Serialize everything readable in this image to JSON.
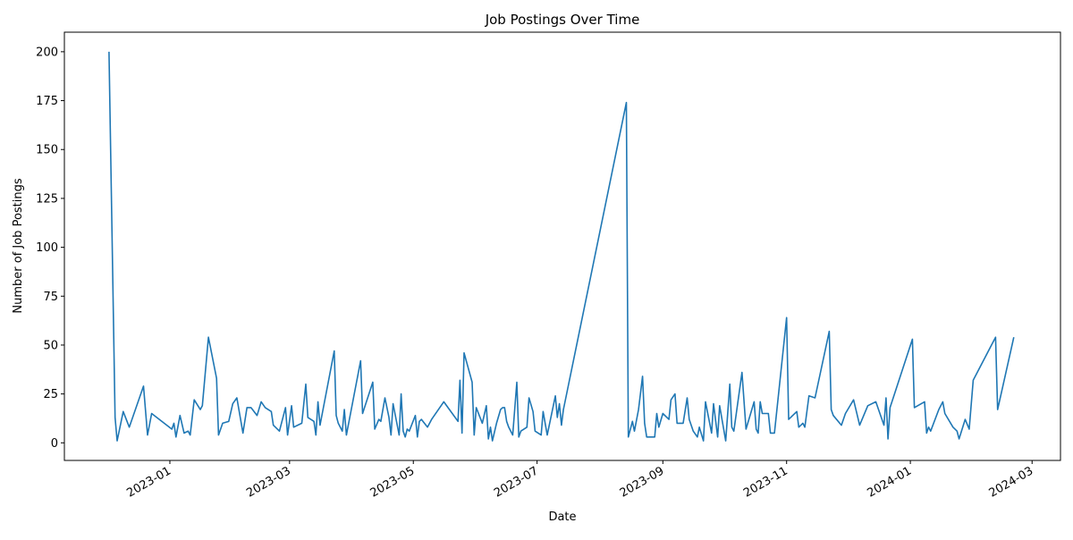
{
  "chart_data": {
    "type": "line",
    "title": "Job Postings Over Time",
    "xlabel": "Date",
    "ylabel": "Number of Job Postings",
    "x": [
      19328,
      19331,
      19332,
      19335,
      19338,
      19345,
      19347,
      19349,
      19359,
      19360,
      19361,
      19363,
      19365,
      19367,
      19368,
      19370,
      19373,
      19374,
      19377,
      19381,
      19382,
      19384,
      19387,
      19389,
      19391,
      19394,
      19396,
      19398,
      19401,
      19403,
      19405,
      19408,
      19409,
      19412,
      19415,
      19416,
      19418,
      19419,
      19421,
      19423,
      19425,
      19426,
      19429,
      19430,
      19431,
      19432,
      19439,
      19440,
      19441,
      19443,
      19444,
      19445,
      19452,
      19453,
      19458,
      19459,
      19461,
      19462,
      19464,
      19466,
      19467,
      19468,
      19471,
      19472,
      19473,
      19474,
      19475,
      19476,
      19479,
      19480,
      19481,
      19482,
      19485,
      19487,
      19493,
      19500,
      19501,
      19502,
      19503,
      19507,
      19508,
      19509,
      19512,
      19514,
      19515,
      19516,
      19517,
      19519,
      19521,
      19522,
      19523,
      19524,
      19525,
      19527,
      19529,
      19530,
      19531,
      19534,
      19535,
      19537,
      19538,
      19541,
      19542,
      19544,
      19548,
      19549,
      19550,
      19551,
      19552,
      19583,
      19584,
      19586,
      19587,
      19589,
      19591,
      19592,
      19593,
      19597,
      19598,
      19599,
      19601,
      19604,
      19605,
      19607,
      19608,
      19611,
      19613,
      19614,
      19616,
      19618,
      19619,
      19621,
      19622,
      19625,
      19626,
      19628,
      19629,
      19632,
      19634,
      19635,
      19636,
      19640,
      19642,
      19646,
      19647,
      19648,
      19649,
      19650,
      19653,
      19654,
      19656,
      19662,
      19663,
      19667,
      19668,
      19670,
      19671,
      19673,
      19676,
      19683,
      19684,
      19685,
      19689,
      19691,
      19695,
      19698,
      19702,
      19706,
      19710,
      19711,
      19712,
      19713,
      19724,
      19725,
      19730,
      19731,
      19732,
      19733,
      19737,
      19739,
      19740,
      19744,
      19746,
      19747,
      19750,
      19752,
      19754,
      19765,
      19766,
      19774
    ],
    "series": [
      {
        "name": "Job Postings",
        "color": "#1f77b4",
        "values": [
          200,
          13,
          1,
          16,
          8,
          29,
          4,
          15,
          7,
          10,
          3,
          14,
          5,
          6,
          4,
          22,
          17,
          19,
          54,
          33,
          4,
          10,
          11,
          20,
          23,
          5,
          18,
          18,
          14,
          21,
          18,
          16,
          9,
          6,
          18,
          4,
          19,
          8,
          9,
          10,
          30,
          13,
          11,
          4,
          21,
          9,
          47,
          14,
          10,
          6,
          17,
          4,
          42,
          15,
          31,
          7,
          12,
          11,
          23,
          13,
          4,
          20,
          4,
          25,
          6,
          3,
          7,
          6,
          14,
          3,
          11,
          12,
          8,
          12,
          21,
          11,
          32,
          5,
          46,
          31,
          4,
          18,
          10,
          19,
          2,
          8,
          1,
          10,
          17,
          18,
          18,
          11,
          8,
          4,
          31,
          3,
          6,
          8,
          23,
          16,
          6,
          4,
          16,
          4,
          24,
          13,
          20,
          9,
          17,
          174,
          3,
          11,
          6,
          17,
          34,
          10,
          3,
          3,
          15,
          8,
          15,
          12,
          22,
          25,
          10,
          10,
          23,
          12,
          6,
          3,
          8,
          1,
          21,
          5,
          20,
          3,
          19,
          1,
          30,
          8,
          6,
          36,
          7,
          21,
          7,
          5,
          21,
          15,
          15,
          5,
          5,
          64,
          12,
          16,
          8,
          10,
          8,
          24,
          23,
          57,
          17,
          14,
          9,
          15,
          22,
          9,
          19,
          21,
          9,
          23,
          2,
          18,
          53,
          18,
          21,
          5,
          8,
          6,
          17,
          21,
          15,
          8,
          6,
          2,
          12,
          7,
          32,
          54,
          17,
          54
        ]
      }
    ],
    "xlim": [
      19306,
      19797
    ],
    "xticks": [
      {
        "value": 19358,
        "label": "2023-01"
      },
      {
        "value": 19417,
        "label": "2023-03"
      },
      {
        "value": 19478,
        "label": "2023-05"
      },
      {
        "value": 19539,
        "label": "2023-07"
      },
      {
        "value": 19601,
        "label": "2023-09"
      },
      {
        "value": 19662,
        "label": "2023-11"
      },
      {
        "value": 19723,
        "label": "2024-01"
      },
      {
        "value": 19783,
        "label": "2024-03"
      }
    ],
    "ylim": [
      -9,
      210
    ],
    "yticks": [
      0,
      25,
      50,
      75,
      100,
      125,
      150,
      175,
      200
    ],
    "grid": false
  }
}
